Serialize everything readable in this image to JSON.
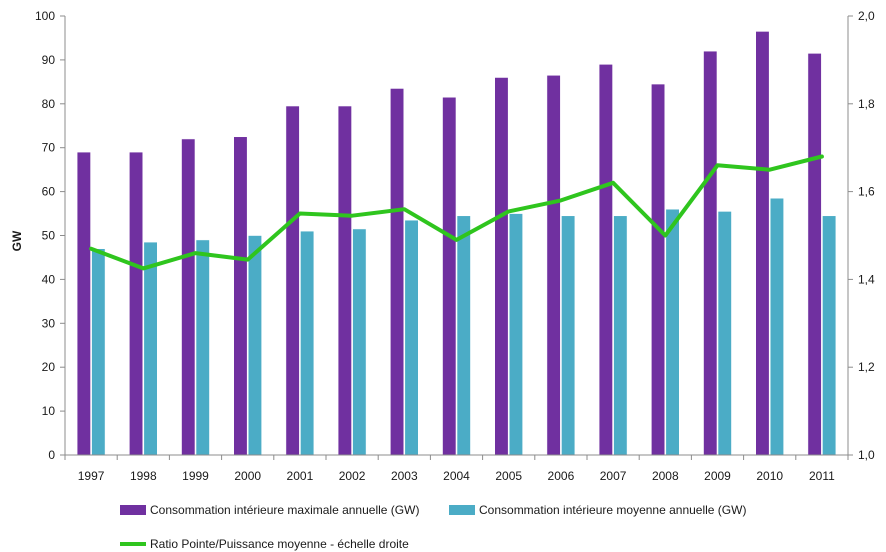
{
  "chart_data": {
    "type": "bar",
    "categories": [
      "1997",
      "1998",
      "1999",
      "2000",
      "2001",
      "2002",
      "2003",
      "2004",
      "2005",
      "2006",
      "2007",
      "2008",
      "2009",
      "2010",
      "2011"
    ],
    "series": [
      {
        "name": "Consommation intérieure maximale annuelle (GW)",
        "kind": "bar",
        "axis": "left",
        "color": "#7030a0",
        "values": [
          69,
          69,
          72,
          72.5,
          79.5,
          79.5,
          83.5,
          81.5,
          86,
          86.5,
          89,
          84.5,
          92,
          96.5,
          91.5
        ]
      },
      {
        "name": "Consommation intérieure moyenne annuelle (GW)",
        "kind": "bar",
        "axis": "left",
        "color": "#4bacc6",
        "values": [
          47,
          48.5,
          49,
          50,
          51,
          51.5,
          53.5,
          54.5,
          55,
          54.5,
          54.5,
          56,
          55.5,
          58.5,
          54.5
        ]
      },
      {
        "name": "Ratio Pointe/Puissance moyenne - échelle droite",
        "kind": "line",
        "axis": "right",
        "color": "#2fc51e",
        "values": [
          1.47,
          1.425,
          1.46,
          1.445,
          1.55,
          1.545,
          1.56,
          1.49,
          1.555,
          1.58,
          1.62,
          1.5,
          1.66,
          1.65,
          1.68
        ]
      }
    ],
    "ylabel": "GW",
    "ylim": [
      0,
      100
    ],
    "yticks": [
      "0",
      "10",
      "20",
      "30",
      "40",
      "50",
      "60",
      "70",
      "80",
      "90",
      "100"
    ],
    "y2lim": [
      1.0,
      2.0
    ],
    "y2ticks": [
      "1,0",
      "1,2",
      "1,4",
      "1,6",
      "1,8",
      "2,0"
    ],
    "legend_position": "bottom",
    "grid": false
  }
}
